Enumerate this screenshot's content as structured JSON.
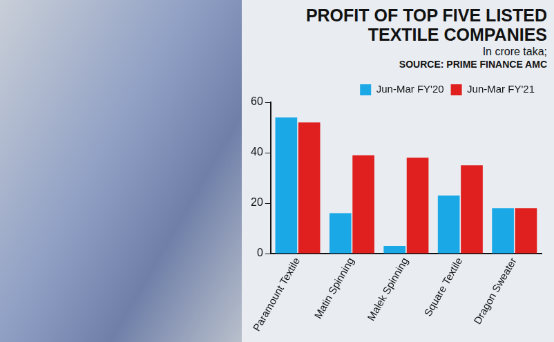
{
  "chart_data": {
    "type": "bar",
    "title": "PROFIT OF TOP FIVE LISTED TEXTILE COMPANIES",
    "subtitle": "In crore taka;",
    "source": "SOURCE: PRIME FINANCE AMC",
    "categories": [
      "Paramount Textile",
      "Matin Spinning",
      "Malek Spinning",
      "Square Textile",
      "Dragon Sweater"
    ],
    "series": [
      {
        "name": "Jun-Mar FY'20",
        "color": "#1ba8e6",
        "values": [
          54,
          16,
          3,
          23,
          18
        ]
      },
      {
        "name": "Jun-Mar FY'21",
        "color": "#e0201f",
        "values": [
          52,
          39,
          38,
          35,
          18
        ]
      }
    ],
    "ylim": [
      0,
      60
    ],
    "yticks": [
      0,
      20,
      40,
      60
    ],
    "grid": false,
    "legend": "top"
  }
}
